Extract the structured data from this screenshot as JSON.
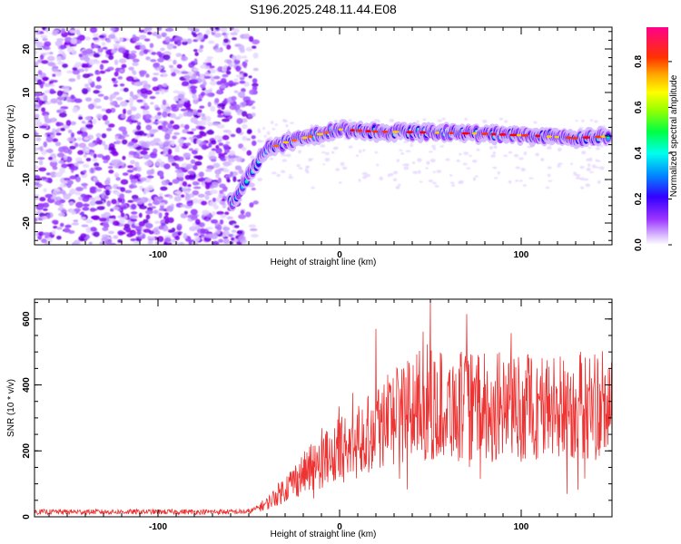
{
  "title": "S196.2025.248.11.44.E08",
  "chart_data": [
    {
      "type": "heatmap",
      "xlabel": "Height of straight line (km)",
      "ylabel": "Frequency (Hz)",
      "xlim": [
        -168,
        150
      ],
      "ylim": [
        -25,
        25
      ],
      "xticks": [
        -100,
        0,
        100
      ],
      "yticks": [
        -20,
        -10,
        0,
        10,
        20
      ],
      "colorbar": {
        "label": "Normalized spectral amplitude",
        "range": [
          0,
          0.95
        ],
        "ticks": [
          0.0,
          0.2,
          0.4,
          0.6,
          0.8
        ],
        "colormap": [
          "#ffffff",
          "#cc99ff",
          "#8800ee",
          "#0000ff",
          "#00ffff",
          "#00ff00",
          "#ffff00",
          "#ff8800",
          "#ff0000",
          "#ff0088"
        ]
      },
      "ridge": {
        "description_points": [
          {
            "x": -58,
            "y": -15
          },
          {
            "x": -50,
            "y": -9
          },
          {
            "x": -40,
            "y": -3
          },
          {
            "x": -30,
            "y": -1.5
          },
          {
            "x": -15,
            "y": 0
          },
          {
            "x": 0,
            "y": 1.5
          },
          {
            "x": 20,
            "y": 1
          },
          {
            "x": 50,
            "y": 0.8
          },
          {
            "x": 80,
            "y": 0.5
          },
          {
            "x": 110,
            "y": 0
          },
          {
            "x": 130,
            "y": -0.5
          },
          {
            "x": 150,
            "y": 0
          }
        ],
        "noise_extent_x": [
          -168,
          -52
        ]
      }
    },
    {
      "type": "line",
      "xlabel": "Height of straight line (km)",
      "ylabel": "SNR (10 * v/v)",
      "xlim": [
        -168,
        150
      ],
      "ylim": [
        0,
        660
      ],
      "xticks": [
        -100,
        0,
        100
      ],
      "yticks": [
        0,
        200,
        400,
        600
      ],
      "series": [
        {
          "name": "SNR",
          "color": "#ee3333",
          "envelope": [
            {
              "x": -168,
              "y": 15
            },
            {
              "x": -50,
              "y": 15
            },
            {
              "x": -40,
              "y": 40
            },
            {
              "x": -25,
              "y": 110
            },
            {
              "x": -10,
              "y": 170
            },
            {
              "x": 10,
              "y": 230
            },
            {
              "x": 25,
              "y": 300
            },
            {
              "x": 40,
              "y": 330
            },
            {
              "x": 55,
              "y": 340
            },
            {
              "x": 80,
              "y": 330
            },
            {
              "x": 100,
              "y": 330
            },
            {
              "x": 120,
              "y": 330
            },
            {
              "x": 150,
              "y": 340
            }
          ],
          "notable_peaks": [
            {
              "x": 50,
              "y": 660
            },
            {
              "x": 20,
              "y": 570
            },
            {
              "x": 70,
              "y": 615
            }
          ]
        }
      ]
    }
  ]
}
